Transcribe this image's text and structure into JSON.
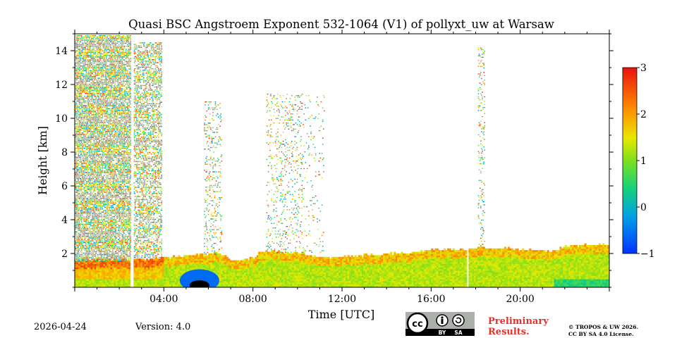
{
  "chart_data": {
    "type": "heatmap",
    "title": "Quasi BSC Angstroem Exponent 532-1064 (V1) of pollyxt_uw at Warsaw",
    "xlabel": "Time [UTC]",
    "ylabel": "Height [km]",
    "xlim_hours": [
      0,
      24
    ],
    "ylim_km": [
      0,
      15
    ],
    "x_ticks": [
      {
        "v": 4,
        "label": "04:00"
      },
      {
        "v": 8,
        "label": "08:00"
      },
      {
        "v": 12,
        "label": "12:00"
      },
      {
        "v": 16,
        "label": "16:00"
      },
      {
        "v": 20,
        "label": "20:00"
      }
    ],
    "y_ticks": [
      {
        "v": 2,
        "label": "2"
      },
      {
        "v": 4,
        "label": "4"
      },
      {
        "v": 6,
        "label": "6"
      },
      {
        "v": 8,
        "label": "8"
      },
      {
        "v": 10,
        "label": "10"
      },
      {
        "v": 12,
        "label": "12"
      },
      {
        "v": 14,
        "label": "14"
      }
    ],
    "colorbar": {
      "min": -1,
      "max": 3,
      "ticks": [
        {
          "v": 3,
          "label": "3"
        },
        {
          "v": 2,
          "label": "2"
        },
        {
          "v": 1,
          "label": "1"
        },
        {
          "v": 0,
          "label": "0"
        },
        {
          "v": -1,
          "label": "−1"
        }
      ],
      "colormap": "jet"
    },
    "data_gaps_hours": [
      [
        2.5,
        2.65
      ],
      [
        17.6,
        17.7
      ]
    ],
    "boundary_layer_top_km": [
      [
        0,
        1.6
      ],
      [
        2.5,
        1.6
      ],
      [
        4,
        1.7
      ],
      [
        5.5,
        1.9
      ],
      [
        6.5,
        2.0
      ],
      [
        7,
        1.5
      ],
      [
        8,
        1.7
      ],
      [
        8.3,
        2.1
      ],
      [
        10,
        2.0
      ],
      [
        11,
        1.7
      ],
      [
        12,
        1.8
      ],
      [
        15,
        2.0
      ],
      [
        16,
        2.2
      ],
      [
        17.6,
        2.2
      ],
      [
        18,
        2.3
      ],
      [
        20,
        2.2
      ],
      [
        21.5,
        2.1
      ],
      [
        22,
        2.4
      ],
      [
        24,
        2.5
      ]
    ],
    "aerosol_layers": [
      {
        "t0": 0.0,
        "t1": 2.5,
        "h0": 1.6,
        "h1": 15.0,
        "density": 0.65
      },
      {
        "t0": 2.65,
        "t1": 3.9,
        "h0": 1.8,
        "h1": 14.5,
        "density": 0.45
      },
      {
        "t0": 5.8,
        "t1": 6.6,
        "h0": 2.0,
        "h1": 11.0,
        "density": 0.15
      },
      {
        "t0": 8.6,
        "t1": 10.2,
        "h0": 2.1,
        "h1": 11.5,
        "density": 0.12
      },
      {
        "t0": 10.2,
        "t1": 11.2,
        "h0": 2.1,
        "h1": 11.5,
        "density": 0.05
      },
      {
        "t0": 18.1,
        "t1": 18.4,
        "h0": 2.3,
        "h1": 14.2,
        "density": 0.15
      }
    ],
    "low_value_features": [
      {
        "t": 5.6,
        "h": 0.3,
        "label": "negative / masked region near surface"
      }
    ]
  },
  "footer": {
    "date": "2026-04-24",
    "version": "Version: 4.0",
    "preliminary_line1": "Preliminary",
    "preliminary_line2": "Results.",
    "copyright_line1": "© TROPOS & UW 2026.",
    "copyright_line2": "CC BY SA 4.0 License.",
    "cc_badge": {
      "cc": "cc",
      "by": "BY",
      "sa": "SA"
    }
  }
}
